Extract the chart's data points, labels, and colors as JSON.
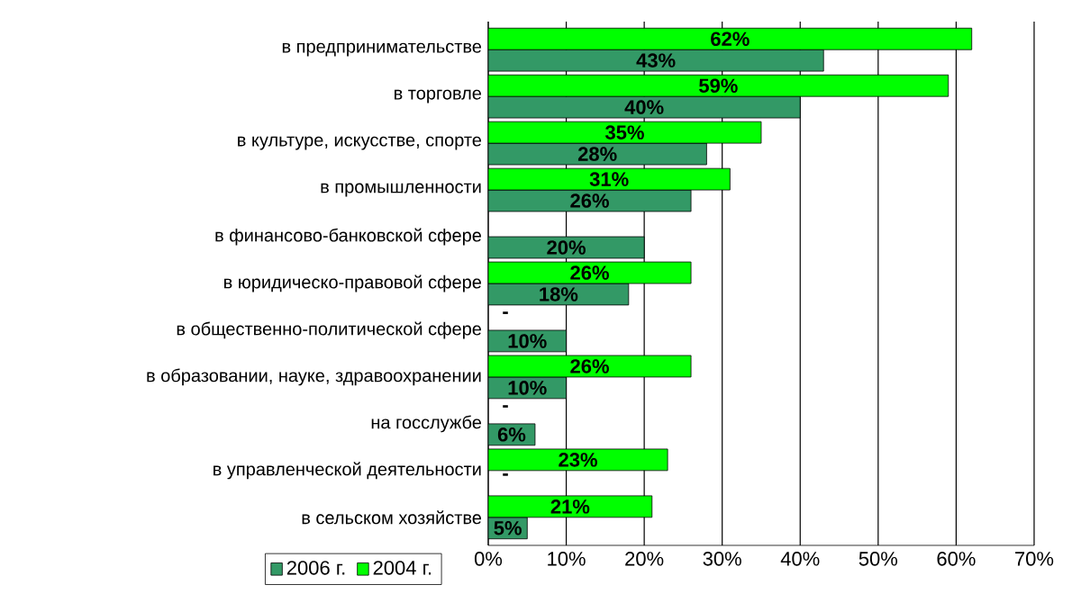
{
  "chart_data": {
    "type": "bar",
    "orientation": "horizontal",
    "categories": [
      "в предпринимательстве",
      "в торговле",
      "в культуре, искусстве, спорте",
      "в промышленности",
      "в финансово-банковской сфере",
      "в юридическо-правовой сфере",
      "в общественно-политической сфере",
      "в образовании, науке, здравоохранении",
      "на госслужбе",
      "в управленческой деятельности",
      "в сельском хозяйстве"
    ],
    "series": [
      {
        "name": "2006 г.",
        "color": "#339966",
        "values": [
          43,
          40,
          28,
          26,
          20,
          18,
          10,
          10,
          6,
          null,
          5
        ],
        "value_labels": [
          "43%",
          "40%",
          "28%",
          "26%",
          "20%",
          "18%",
          "10%",
          "10%",
          "6%",
          "-",
          "5%"
        ]
      },
      {
        "name": "2004 г.",
        "color": "#00ff00",
        "values": [
          62,
          59,
          35,
          31,
          null,
          26,
          null,
          26,
          null,
          23,
          21
        ],
        "value_labels": [
          "62%",
          "59%",
          "35%",
          "31%",
          null,
          "26%",
          "-",
          "26%",
          "-",
          "23%",
          "21%"
        ]
      }
    ],
    "xlim": [
      0,
      70
    ],
    "xticks": [
      {
        "value": 0,
        "label": "0%"
      },
      {
        "value": 10,
        "label": "10%"
      },
      {
        "value": 20,
        "label": "20%"
      },
      {
        "value": 30,
        "label": "30%"
      },
      {
        "value": 40,
        "label": "40%"
      },
      {
        "value": 50,
        "label": "50%"
      },
      {
        "value": 60,
        "label": "60%"
      },
      {
        "value": 70,
        "label": "70%"
      }
    ],
    "grid": "x",
    "legend": "bottom left"
  }
}
